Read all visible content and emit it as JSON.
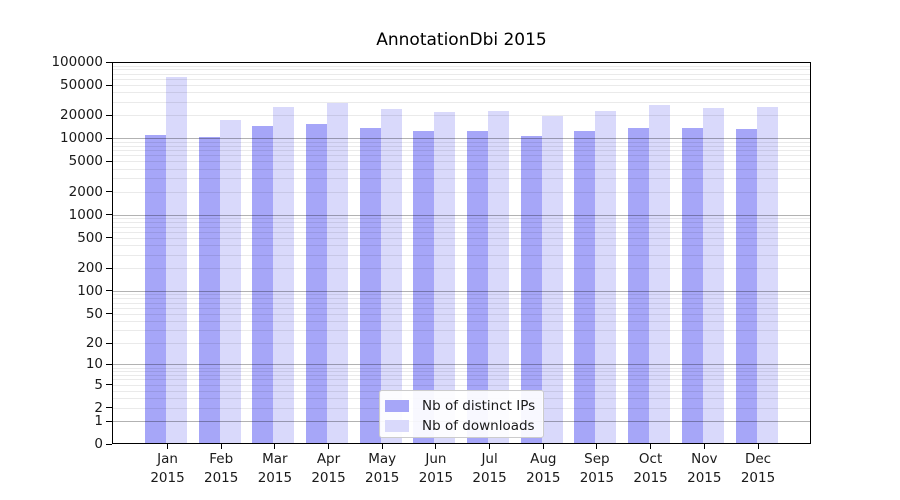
{
  "page": {
    "background": "#ffffff"
  },
  "chart_data": {
    "type": "bar",
    "title": "AnnotationDbi 2015",
    "xlabel": "",
    "ylabel": "",
    "x_year": "2015",
    "categories": [
      "Jan",
      "Feb",
      "Mar",
      "Apr",
      "May",
      "Jun",
      "Jul",
      "Aug",
      "Sep",
      "Oct",
      "Nov",
      "Dec"
    ],
    "series": [
      {
        "name": "Nb of distinct IPs",
        "color": "#a6a6f8",
        "values": [
          11000,
          10400,
          14600,
          15400,
          13800,
          12700,
          12700,
          10800,
          12400,
          13700,
          13800,
          13400
        ]
      },
      {
        "name": "Nb of downloads",
        "color": "#d9d9fb",
        "values": [
          64000,
          17200,
          25900,
          29000,
          24400,
          22500,
          23000,
          19400,
          23000,
          27000,
          25400,
          25900
        ]
      }
    ],
    "y_scale": "log10(value+1)",
    "ylim": [
      0,
      100000
    ],
    "y_ticks": [
      0,
      1,
      2,
      5,
      10,
      20,
      50,
      100,
      200,
      500,
      1000,
      2000,
      5000,
      10000,
      20000,
      50000,
      100000
    ],
    "grid": "horizontal major (decades, gray) + minor (2-9 per decade, light gray)",
    "legend_position": "inside plot, lower center",
    "colors": {
      "major_grid": "#b2b2b2",
      "minor_grid": "#eaeaea",
      "axis": "#000000"
    }
  }
}
